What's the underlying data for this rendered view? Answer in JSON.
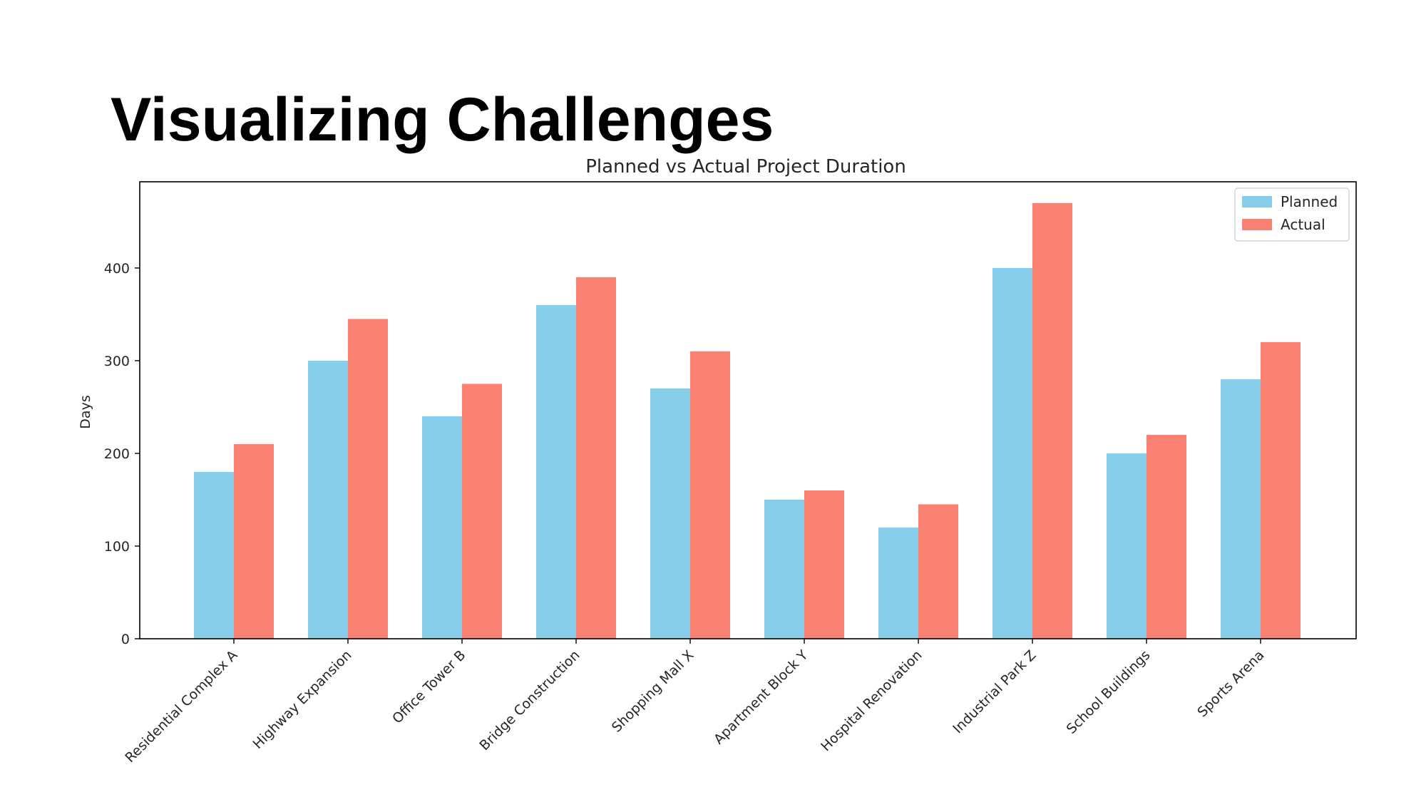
{
  "slide": {
    "title": "Visualizing Challenges"
  },
  "chart_data": {
    "type": "bar",
    "title": "Planned vs Actual Project Duration",
    "xlabel": "",
    "ylabel": "Days",
    "ylim": [
      0,
      493
    ],
    "yticks": [
      0,
      100,
      200,
      300,
      400
    ],
    "categories": [
      "Residential Complex A",
      "Highway Expansion",
      "Office Tower B",
      "Bridge Construction",
      "Shopping Mall X",
      "Apartment Block Y",
      "Hospital Renovation",
      "Industrial Park Z",
      "School Buildings",
      "Sports Arena"
    ],
    "series": [
      {
        "name": "Planned",
        "color": "#87ceeb",
        "values": [
          180,
          300,
          240,
          360,
          270,
          150,
          120,
          400,
          200,
          280
        ]
      },
      {
        "name": "Actual",
        "color": "#fa8072",
        "values": [
          210,
          345,
          275,
          390,
          310,
          160,
          145,
          470,
          220,
          320
        ]
      }
    ],
    "legend": "top-right",
    "grid": false
  }
}
